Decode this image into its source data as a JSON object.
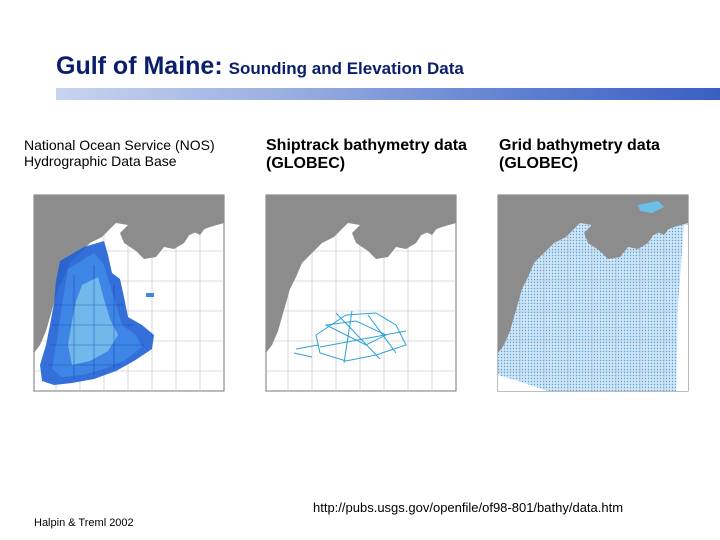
{
  "header": {
    "title_main": "Gulf of Maine:",
    "title_sub": "Sounding and Elevation Data"
  },
  "panels": [
    {
      "caption_line1": "National Ocean Service (NOS)",
      "caption_line2": "Hydrographic Data Base"
    },
    {
      "caption_line1": "Shiptrack bathymetry data",
      "caption_line2": "(GLOBEC)"
    },
    {
      "caption_line1": "Grid bathymetry data",
      "caption_line2": "(GLOBEC)"
    }
  ],
  "source_url": "http://pubs.usgs.gov/openfile/of98-801/bathy/data.htm",
  "credit": "Halpin & Treml 2002",
  "colors": {
    "title": "#0a1f6b",
    "land": "#8c8c8c",
    "bathy_dense": "#1f5fd6",
    "bathy_light": "#7fc4ec",
    "bar_end": "#3a5fc4"
  }
}
